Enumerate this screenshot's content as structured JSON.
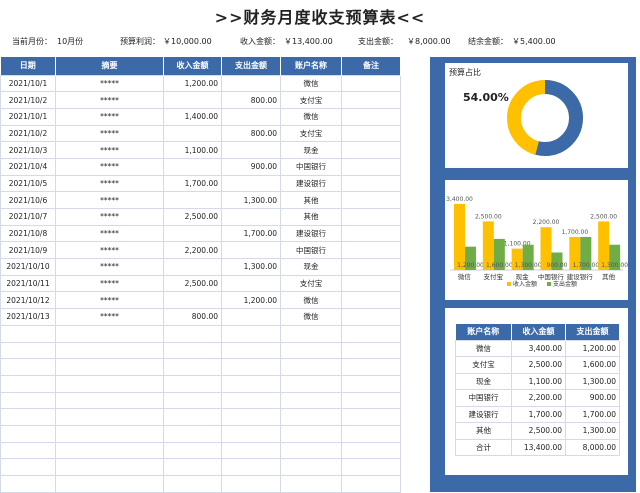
{
  "title": ">>财务月度收支预算表<<",
  "summary": {
    "month_label": "当前月份：",
    "month": "10月份",
    "budget_label": "预算利润：",
    "budget": "￥10,000.00",
    "income_label": "收入金额：",
    "income": "￥13,400.00",
    "expense_label": "支出金额：",
    "expense": "￥8,000.00",
    "balance_label": "结余金额：",
    "balance": "￥5,400.00"
  },
  "ledger": {
    "headers": [
      "日期",
      "摘要",
      "收入金额",
      "支出金额",
      "账户名称",
      "备注"
    ],
    "rows": [
      [
        "2021/10/1",
        "*****",
        "1,200.00",
        "",
        "微信",
        ""
      ],
      [
        "2021/10/2",
        "*****",
        "",
        "800.00",
        "支付宝",
        ""
      ],
      [
        "2021/10/1",
        "*****",
        "1,400.00",
        "",
        "微信",
        ""
      ],
      [
        "2021/10/2",
        "*****",
        "",
        "800.00",
        "支付宝",
        ""
      ],
      [
        "2021/10/3",
        "*****",
        "1,100.00",
        "",
        "现金",
        ""
      ],
      [
        "2021/10/4",
        "*****",
        "",
        "900.00",
        "中国银行",
        ""
      ],
      [
        "2021/10/5",
        "*****",
        "1,700.00",
        "",
        "建设银行",
        ""
      ],
      [
        "2021/10/6",
        "*****",
        "",
        "1,300.00",
        "其他",
        ""
      ],
      [
        "2021/10/7",
        "*****",
        "2,500.00",
        "",
        "其他",
        ""
      ],
      [
        "2021/10/8",
        "*****",
        "",
        "1,700.00",
        "建设银行",
        ""
      ],
      [
        "2021/10/9",
        "*****",
        "2,200.00",
        "",
        "中国银行",
        ""
      ],
      [
        "2021/10/10",
        "*****",
        "",
        "1,300.00",
        "现金",
        ""
      ],
      [
        "2021/10/11",
        "*****",
        "2,500.00",
        "",
        "支付宝",
        ""
      ],
      [
        "2021/10/12",
        "*****",
        "",
        "1,200.00",
        "微信",
        ""
      ],
      [
        "2021/10/13",
        "*****",
        "800.00",
        "",
        "微信",
        ""
      ]
    ],
    "empty_rows": 10
  },
  "donut": {
    "title": "预算占比",
    "percent_label": "54.00%",
    "fraction": 0.54,
    "color_fill": "#3c6aa8",
    "color_rest": "#ffc000"
  },
  "chart_data": {
    "type": "bar",
    "categories": [
      "微信",
      "支付宝",
      "现金",
      "中国银行",
      "建设银行",
      "其他"
    ],
    "series": [
      {
        "name": "收入金额",
        "values": [
          3400,
          2500,
          1100,
          2200,
          1700,
          2500
        ],
        "color": "#ffc000",
        "labels": [
          "3,400.00",
          "2,500.00",
          "1,100.00",
          "2,200.00",
          "1,700.00",
          "2,500.00"
        ]
      },
      {
        "name": "支出金额",
        "values": [
          1200,
          1600,
          1300,
          900,
          1700,
          1300
        ],
        "color": "#70ad47",
        "labels": [
          "1,200.00",
          "1,600.00",
          "1,300.00",
          "900.00",
          "1,700.00",
          "1,300.00"
        ]
      }
    ],
    "ylim": [
      0,
      3600
    ],
    "legend": "bottom"
  },
  "summary_table": {
    "headers": [
      "账户名称",
      "收入金额",
      "支出金额"
    ],
    "rows": [
      [
        "微信",
        "3,400.00",
        "1,200.00"
      ],
      [
        "支付宝",
        "2,500.00",
        "1,600.00"
      ],
      [
        "现金",
        "1,100.00",
        "1,300.00"
      ],
      [
        "中国银行",
        "2,200.00",
        "900.00"
      ],
      [
        "建设银行",
        "1,700.00",
        "1,700.00"
      ],
      [
        "其他",
        "2,500.00",
        "1,300.00"
      ],
      [
        "合计",
        "13,400.00",
        "8,000.00"
      ]
    ]
  }
}
